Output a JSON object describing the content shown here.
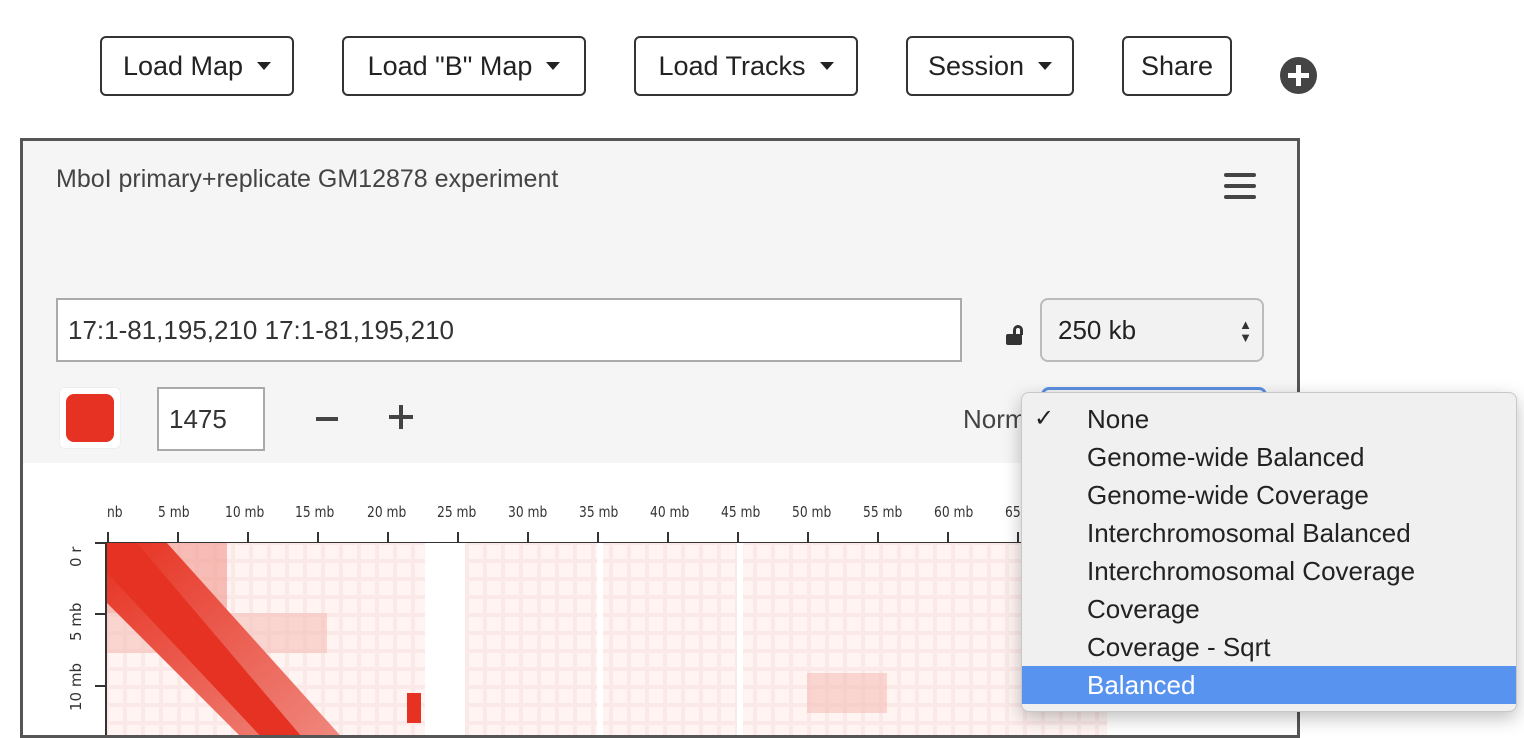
{
  "toolbar": {
    "buttons": [
      {
        "label": "Load Map",
        "dropdown": true
      },
      {
        "label": "Load \"B\" Map",
        "dropdown": true
      },
      {
        "label": "Load Tracks",
        "dropdown": true
      },
      {
        "label": "Session",
        "dropdown": true
      },
      {
        "label": "Share",
        "dropdown": false
      }
    ],
    "add_icon": "plus-circle-icon"
  },
  "browser": {
    "title": "MboI primary+replicate GM12878 experiment",
    "menu_icon": "hamburger-icon",
    "locus": "17:1-81,195,210 17:1-81,195,210",
    "lock_icon": "unlocked-icon",
    "resolution": "250 kb",
    "color_swatch": "#e63222",
    "color_threshold": "1475",
    "normalization_label": "Norm",
    "ruler_x_ticks": [
      "nb",
      "5 mb",
      "10 mb",
      "15 mb",
      "20 mb",
      "25 mb",
      "30 mb",
      "35 mb",
      "40 mb",
      "45 mb",
      "50 mb",
      "55 mb",
      "60 mb",
      "65"
    ],
    "ruler_y_ticks": [
      "0 r",
      "5 mb",
      "10 mb"
    ]
  },
  "normalization_menu": {
    "options": [
      "None",
      "Genome-wide Balanced",
      "Genome-wide Coverage",
      "Interchromosomal Balanced",
      "Interchromosomal Coverage",
      "Coverage",
      "Coverage - Sqrt",
      "Balanced"
    ],
    "checked": "None",
    "highlighted": "Balanced",
    "highlight_color": "#5893ef"
  }
}
